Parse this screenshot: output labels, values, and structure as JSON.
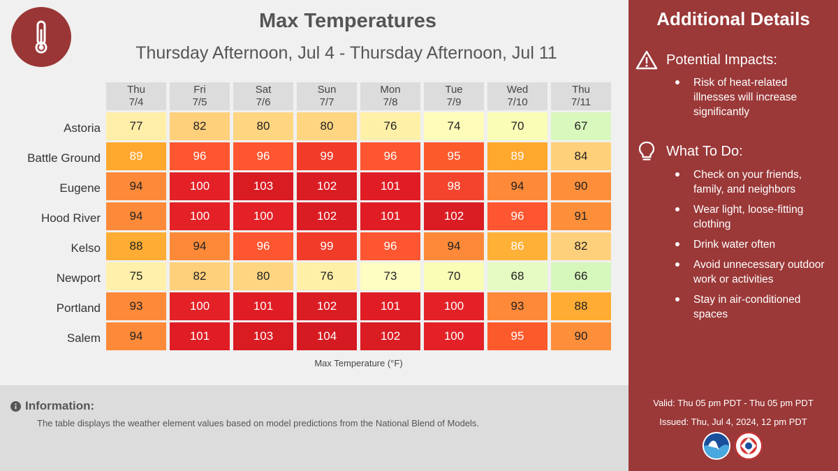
{
  "header": {
    "title": "Max Temperatures",
    "subtitle": "Thursday Afternoon, Jul 4 - Thursday Afternoon, Jul 11",
    "logo_icon": "thermometer-icon"
  },
  "table": {
    "columns": [
      {
        "day": "Thu",
        "date": "7/4"
      },
      {
        "day": "Fri",
        "date": "7/5"
      },
      {
        "day": "Sat",
        "date": "7/6"
      },
      {
        "day": "Sun",
        "date": "7/7"
      },
      {
        "day": "Mon",
        "date": "7/8"
      },
      {
        "day": "Tue",
        "date": "7/9"
      },
      {
        "day": "Wed",
        "date": "7/10"
      },
      {
        "day": "Thu",
        "date": "7/11"
      }
    ],
    "rows": [
      {
        "city": "Astoria",
        "values": [
          "77",
          "82",
          "80",
          "80",
          "76",
          "74",
          "70",
          "67"
        ]
      },
      {
        "city": "Battle Ground",
        "values": [
          "89",
          "96",
          "96",
          "99",
          "96",
          "95",
          "89",
          "84"
        ]
      },
      {
        "city": "Eugene",
        "values": [
          "94",
          "100",
          "103",
          "102",
          "101",
          "98",
          "94",
          "90"
        ]
      },
      {
        "city": "Hood River",
        "values": [
          "94",
          "100",
          "100",
          "102",
          "101",
          "102",
          "96",
          "91"
        ]
      },
      {
        "city": "Kelso",
        "values": [
          "88",
          "94",
          "96",
          "99",
          "96",
          "94",
          "86",
          "82"
        ]
      },
      {
        "city": "Newport",
        "values": [
          "75",
          "82",
          "80",
          "76",
          "73",
          "70",
          "68",
          "66"
        ]
      },
      {
        "city": "Portland",
        "values": [
          "93",
          "100",
          "101",
          "102",
          "101",
          "100",
          "93",
          "88"
        ]
      },
      {
        "city": "Salem",
        "values": [
          "94",
          "101",
          "103",
          "104",
          "102",
          "100",
          "95",
          "90"
        ]
      }
    ],
    "unit_label": "Max Temperature (°F)"
  },
  "colors": {
    "panel": "#9b3838",
    "scale": {
      "66": "#d6f7bb",
      "67": "#d9f8bd",
      "68": "#e5fbc3",
      "70": "#f9fdb6",
      "73": "#fefdc2",
      "74": "#fefcb8",
      "75": "#fff0ab",
      "76": "#fff0a8",
      "77": "#ffeea8",
      "80": "#fed581",
      "82": "#fed07c",
      "84": "#fed07a",
      "86": "#ffb037",
      "88": "#feac33",
      "89": "#ffa82e",
      "90": "#fe8f3a",
      "91": "#fe8f3a",
      "93": "#fe8938",
      "94": "#fe8a39",
      "95": "#fd5a2c",
      "96": "#fd5630",
      "98": "#f4442d",
      "99": "#f13c2a",
      "100": "#e32127",
      "101": "#e01d24",
      "102": "#da1c23",
      "103": "#d91b22",
      "104": "#d51a21"
    },
    "light_text": [
      "89",
      "86"
    ]
  },
  "info": {
    "title": "Information:",
    "text": "The table displays the weather element values based on model predictions from the National Blend of Models."
  },
  "sidebar": {
    "title": "Additional Details",
    "impacts": {
      "title": "Potential Impacts:",
      "icon": "warning-icon",
      "items": [
        "Risk of heat-related illnesses will increase significantly"
      ]
    },
    "todo": {
      "title": "What To Do:",
      "icon": "lightbulb-icon",
      "items": [
        "Check on your friends, family, and neighbors",
        "Wear light, loose-fitting clothing",
        "Drink water often",
        "Avoid unnecessary outdoor work or activities",
        "Stay in air-conditioned spaces"
      ]
    },
    "valid": "Valid: Thu 05 pm PDT - Thu 05 pm PDT",
    "issued": "Issued: Thu, Jul 4, 2024, 12 pm PDT",
    "logos": [
      "noaa-logo",
      "nws-logo"
    ],
    "noaa_text": "NOAA"
  }
}
